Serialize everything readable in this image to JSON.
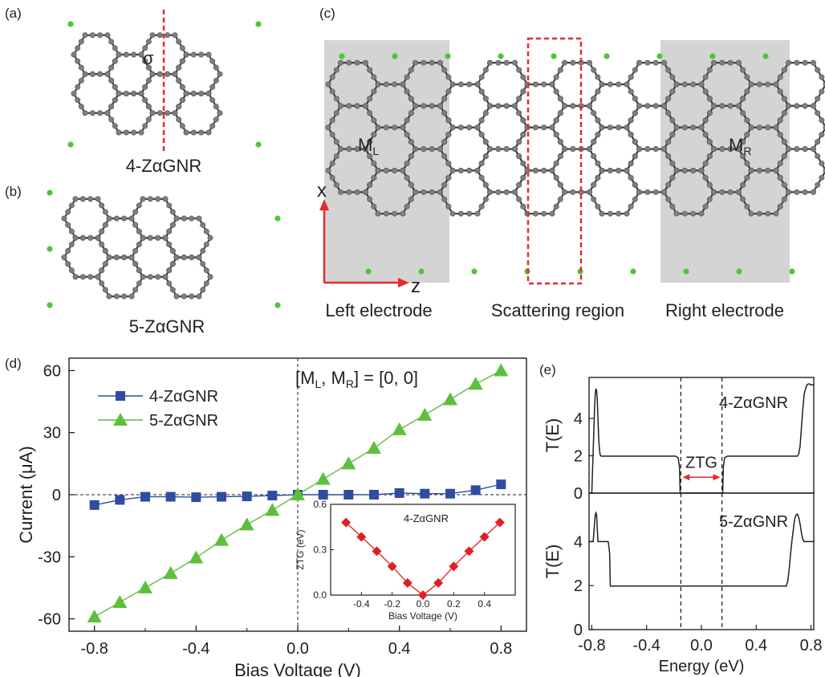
{
  "panels": {
    "a": {
      "tag": "(a)",
      "caption": "4-ZαGNR",
      "sigma": "σ"
    },
    "b": {
      "tag": "(b)",
      "caption": "5-ZαGNR"
    },
    "c": {
      "tag": "(c)",
      "ML": "M",
      "ML_sub": "L",
      "MR": "M",
      "MR_sub": "R",
      "axis_x": "x",
      "axis_z": "z",
      "left_label": "Left electrode",
      "center_label": "Scattering region",
      "right_label": "Right electrode"
    },
    "d": {
      "tag": "(d)"
    },
    "e": {
      "tag": "(e)"
    }
  },
  "colors": {
    "atom": "#7f7f7f",
    "bond": "#404040",
    "hydrogen": "#4fc43b",
    "electrode_shade": "#d4d4d4",
    "red": "#e8292b",
    "blue": "#2f4da0",
    "green": "#5fbf3c",
    "inset_red": "#e02020"
  },
  "chart_data": [
    {
      "id": "iv",
      "type": "line",
      "xlabel": "Bias Voltage (V)",
      "ylabel": "Current (μA)",
      "xlim": [
        -0.9,
        0.9
      ],
      "ylim": [
        -66,
        66
      ],
      "xticks": [
        "-0.8",
        "-0.4",
        "0.0",
        "0.4",
        "0.8"
      ],
      "yticks": [
        "-60",
        "-30",
        "0",
        "30",
        "60"
      ],
      "annotation": {
        "prefix": "[M",
        "s1": "L",
        "mid": ", M",
        "s2": "R",
        "suffix": "] = [0, 0]"
      },
      "legend_position": "top-left",
      "x": [
        -0.8,
        -0.7,
        -0.6,
        -0.5,
        -0.4,
        -0.3,
        -0.2,
        -0.1,
        0.0,
        0.1,
        0.2,
        0.3,
        0.4,
        0.5,
        0.6,
        0.7,
        0.8
      ],
      "series": [
        {
          "name": "4-ZαGNR",
          "marker": "square",
          "values": [
            -5,
            -2.5,
            -1,
            -1,
            -1.2,
            -1,
            -0.8,
            -0.4,
            0,
            0,
            0,
            0,
            0.8,
            0.5,
            0.5,
            2.2,
            5
          ]
        },
        {
          "name": "5-ZαGNR",
          "marker": "triangle",
          "values": [
            -59,
            -52,
            -45,
            -38,
            -30.5,
            -22,
            -14.5,
            -7.5,
            0,
            7.5,
            15,
            22.5,
            31.5,
            38.5,
            46,
            53.5,
            60
          ]
        }
      ]
    },
    {
      "id": "inset",
      "type": "line",
      "title": "4-ZαGNR",
      "xlabel": "Bias Voltage (V)",
      "ylabel": "ZTG (eV)",
      "xlim": [
        -0.6,
        0.6
      ],
      "ylim": [
        0,
        0.6
      ],
      "xticks": [
        "-0.4",
        "-0.2",
        "0.0",
        "0.2",
        "0.4"
      ],
      "yticks": [
        "0.0",
        "0.3",
        "0.6"
      ],
      "x": [
        -0.5,
        -0.4,
        -0.3,
        -0.2,
        -0.1,
        0.0,
        0.1,
        0.2,
        0.3,
        0.4,
        0.5
      ],
      "values": [
        0.48,
        0.385,
        0.29,
        0.19,
        0.08,
        0.0,
        0.08,
        0.19,
        0.29,
        0.385,
        0.48
      ]
    },
    {
      "id": "te_top",
      "type": "line",
      "ylabel": "T(E)",
      "label": "4-ZαGNR",
      "gap_label": "ZTG",
      "xlim": [
        -0.82,
        0.82
      ],
      "ylim": [
        0,
        6.2
      ],
      "yticks": [
        "0",
        "2",
        "4"
      ],
      "dashed_x": [
        -0.15,
        0.15
      ],
      "x": [
        -0.82,
        -0.8,
        -0.78,
        -0.775,
        -0.77,
        -0.765,
        -0.76,
        -0.755,
        -0.75,
        -0.745,
        -0.74,
        -0.735,
        -0.73,
        -0.725,
        -0.72,
        -0.19,
        -0.17,
        -0.16,
        -0.155,
        0.155,
        0.16,
        0.17,
        0.19,
        0.7,
        0.71,
        0.72,
        0.73,
        0.74,
        0.75,
        0.76,
        0.77,
        0.78,
        0.79,
        0.8,
        0.82
      ],
      "values": [
        0,
        0,
        4.5,
        5.3,
        5.6,
        5.5,
        5.0,
        4.0,
        3.0,
        2.4,
        2.1,
        2.0,
        1.98,
        1.98,
        1.98,
        1.98,
        1.9,
        1.4,
        0,
        0,
        1.4,
        1.9,
        1.98,
        1.98,
        2.1,
        2.5,
        3.5,
        4.5,
        5.3,
        5.6,
        5.8,
        5.85,
        5.85,
        5.8,
        5.8
      ]
    },
    {
      "id": "te_bottom",
      "type": "line",
      "ylabel": "T(E)",
      "label": "5-ZαGNR",
      "xlabel": "Energy (eV)",
      "xlim": [
        -0.82,
        0.82
      ],
      "ylim": [
        0,
        6.2
      ],
      "xticks": [
        "-0.8",
        "-0.4",
        "0.0",
        "0.4",
        "0.8"
      ],
      "yticks": [
        "0",
        "2",
        "4"
      ],
      "dashed_x": [
        -0.15,
        0.15
      ],
      "x": [
        -0.82,
        -0.8,
        -0.79,
        -0.78,
        -0.775,
        -0.77,
        -0.765,
        -0.76,
        -0.755,
        -0.75,
        -0.74,
        -0.73,
        -0.7,
        -0.68,
        -0.67,
        -0.665,
        0.62,
        0.63,
        0.64,
        0.65,
        0.66,
        0.67,
        0.68,
        0.69,
        0.7,
        0.71,
        0.72,
        0.73,
        0.74,
        0.75,
        0.76,
        0.77,
        0.78,
        0.82
      ],
      "values": [
        4.0,
        4.0,
        4.0,
        4.8,
        5.2,
        5.3,
        5.2,
        4.6,
        4.0,
        4.0,
        4.0,
        4.0,
        4.0,
        4.0,
        3.5,
        1.98,
        1.98,
        2.2,
        2.7,
        3.4,
        4.0,
        4.5,
        5.0,
        5.2,
        5.25,
        5.1,
        4.8,
        4.4,
        4.1,
        4.0,
        4.0,
        4.0,
        4.0,
        4.0
      ]
    }
  ]
}
